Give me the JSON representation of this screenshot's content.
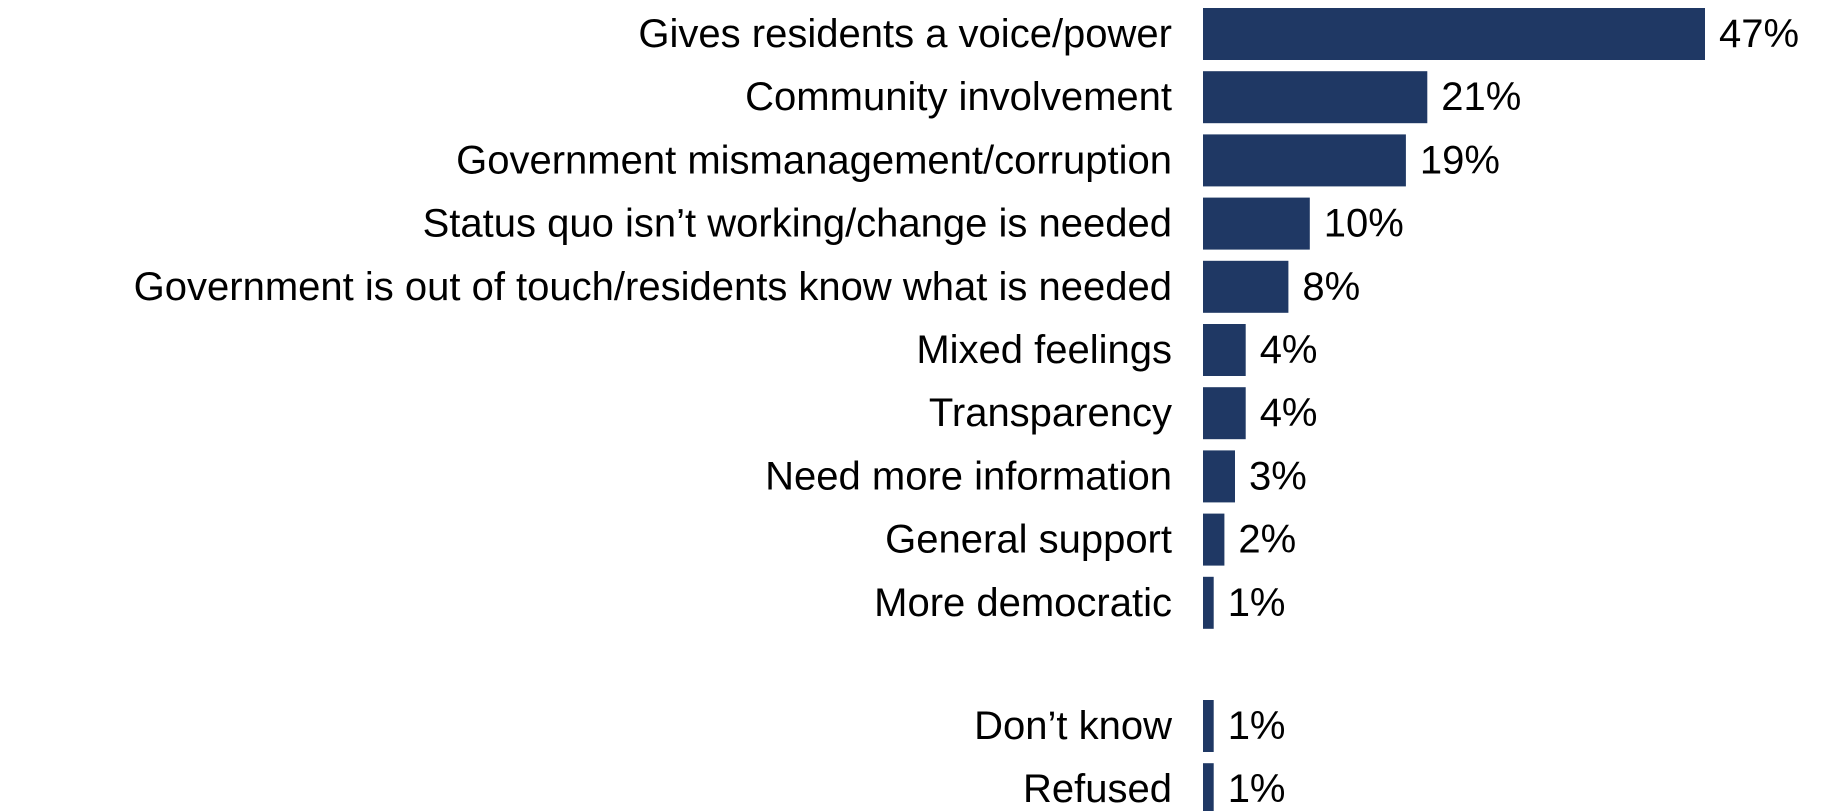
{
  "chart_data": {
    "type": "bar",
    "orientation": "horizontal",
    "categories": [
      "Gives residents a voice/power",
      "Community involvement",
      "Government mismanagement/corruption",
      "Status quo isn’t working/change is needed",
      "Government is out of touch/residents know what is needed",
      "Mixed feelings",
      "Transparency",
      "Need more information",
      "General support",
      "More democratic",
      "Don’t know",
      "Refused"
    ],
    "values": [
      47,
      21,
      19,
      10,
      8,
      4,
      4,
      3,
      2,
      1,
      1,
      1
    ],
    "value_labels": [
      "47%",
      "21%",
      "19%",
      "10%",
      "8%",
      "4%",
      "4%",
      "3%",
      "2%",
      "1%",
      "1%",
      "1%"
    ],
    "unit": "%",
    "xlim": [
      0,
      47
    ],
    "grid": false,
    "legend": "none",
    "bar_color": "#1f3864"
  }
}
